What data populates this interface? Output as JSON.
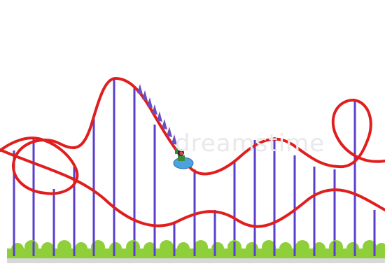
{
  "scene": {
    "subject": "roller coaster",
    "colors": {
      "track": "#e01e1e",
      "supports": "#5a3fcf",
      "bushes": "#8fcf3a",
      "bush_dark": "#6fb22a",
      "ground_shadow": "#c9c9c9",
      "car": "#4aa3e0",
      "spikes": "#6b4fc0"
    }
  },
  "watermark": {
    "text": "dreamstime"
  }
}
